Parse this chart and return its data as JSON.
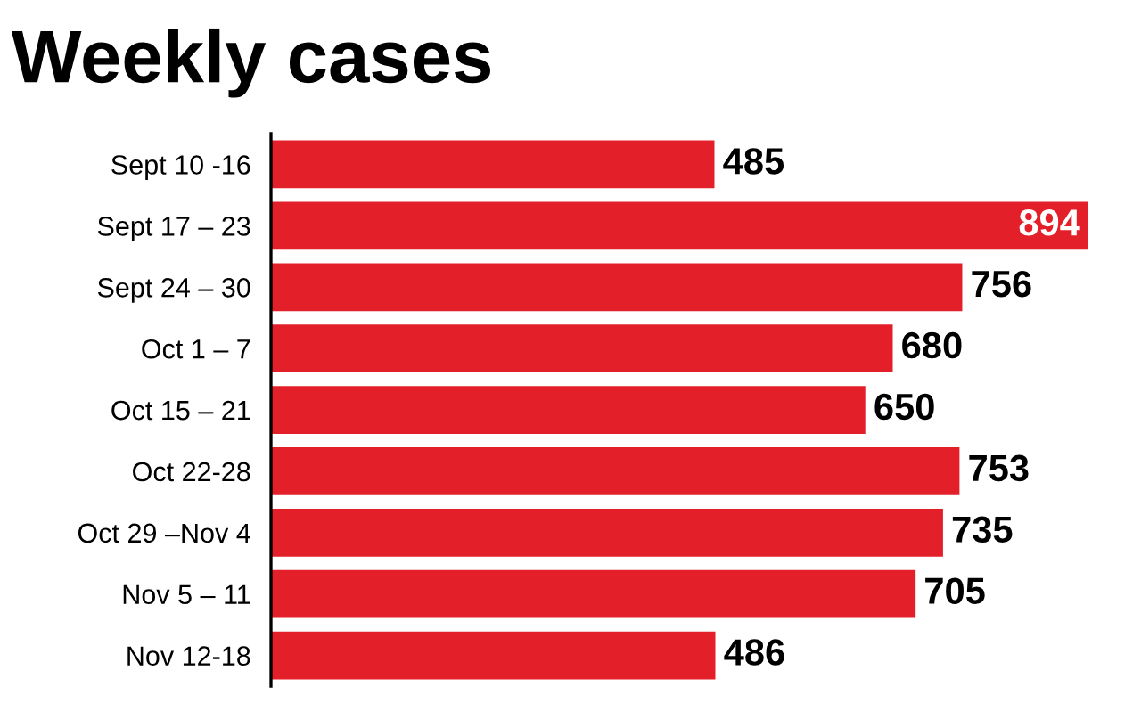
{
  "chart_data": {
    "type": "bar",
    "orientation": "horizontal",
    "title": "Weekly cases",
    "categories": [
      "Sept 10 -16",
      "Sept 17 – 23",
      "Sept 24 – 30",
      "Oct 1 – 7",
      "Oct 15 – 21",
      "Oct 22-28",
      "Oct 29 –Nov 4",
      "Nov 5 – 11",
      "Nov 12-18"
    ],
    "values": [
      485,
      894,
      756,
      680,
      650,
      753,
      735,
      705,
      486
    ],
    "color": "#e3202a",
    "data_labels": true,
    "grid": false,
    "legend": false
  }
}
